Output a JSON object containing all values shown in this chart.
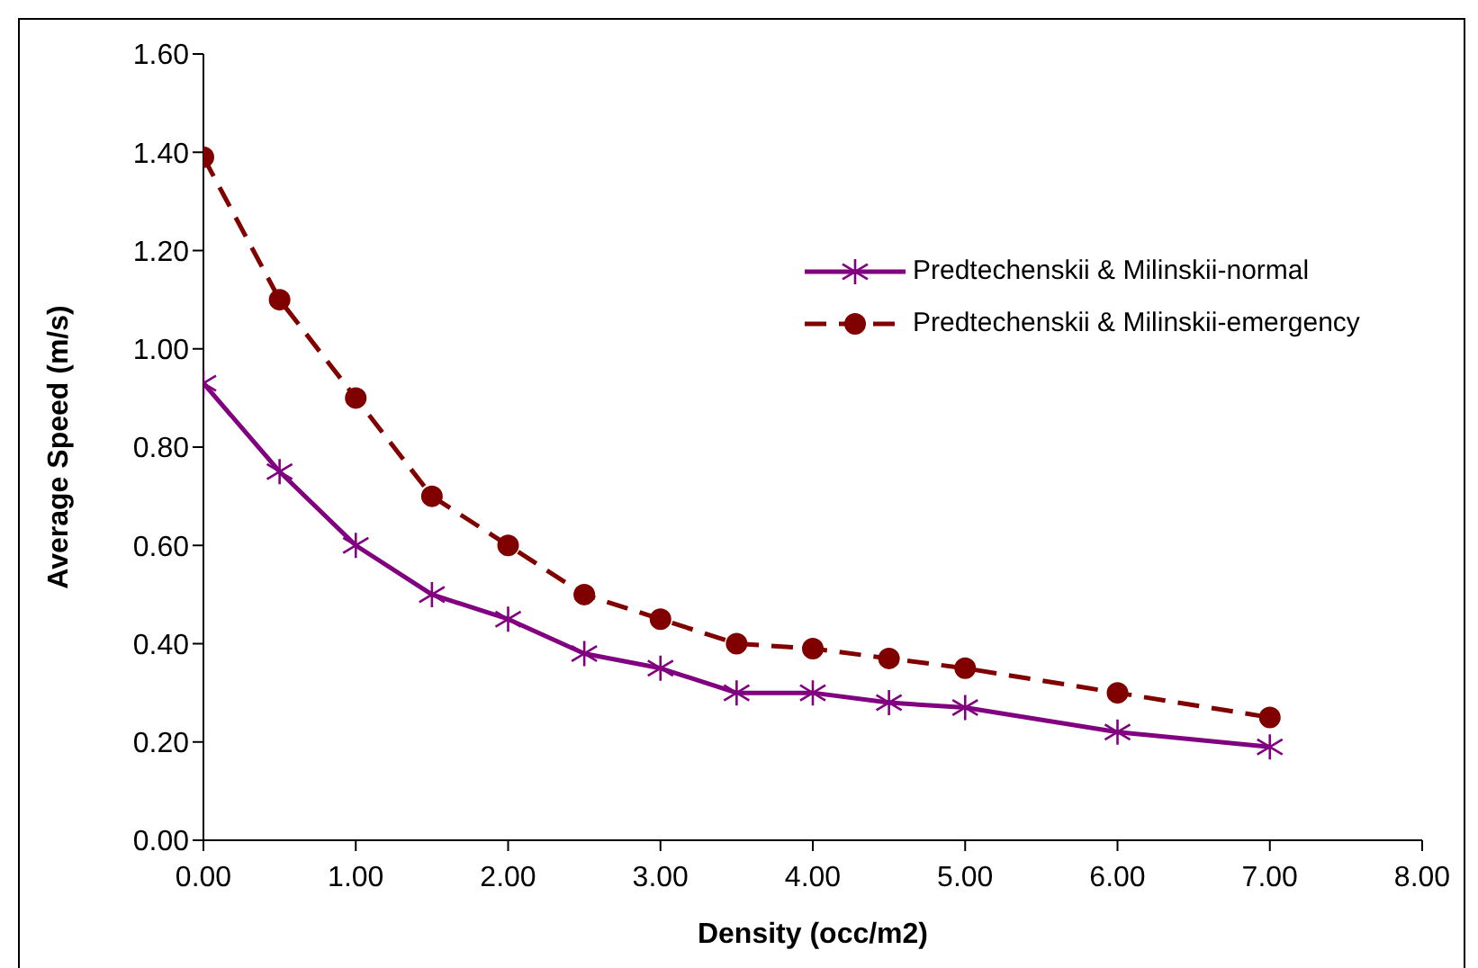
{
  "chart_data": {
    "type": "line",
    "xlabel": "Density (occ/m2)",
    "ylabel": "Average Speed (m/s)",
    "x": [
      0,
      0.5,
      1,
      1.5,
      2,
      2.5,
      3,
      3.5,
      4,
      4.5,
      5,
      6,
      7
    ],
    "series": [
      {
        "name": "Predtechenskii & Milinskii-normal",
        "color": "#800080",
        "marker": "cross",
        "line_style": "solid",
        "values": [
          0.93,
          0.75,
          0.6,
          0.5,
          0.45,
          0.38,
          0.35,
          0.3,
          0.3,
          0.28,
          0.27,
          0.22,
          0.19
        ]
      },
      {
        "name": "Predtechenskii & Milinskii-emergency",
        "color": "#800000",
        "marker": "circle",
        "line_style": "dashed",
        "values": [
          1.39,
          1.1,
          0.9,
          0.7,
          0.6,
          0.5,
          0.45,
          0.4,
          0.39,
          0.37,
          0.35,
          0.3,
          0.25
        ]
      }
    ],
    "xlim": [
      0,
      8
    ],
    "xticks": [
      {
        "value": 0,
        "label": "0.00"
      },
      {
        "value": 1,
        "label": "1.00"
      },
      {
        "value": 2,
        "label": "2.00"
      },
      {
        "value": 3,
        "label": "3.00"
      },
      {
        "value": 4,
        "label": "4.00"
      },
      {
        "value": 5,
        "label": "5.00"
      },
      {
        "value": 6,
        "label": "6.00"
      },
      {
        "value": 7,
        "label": "7.00"
      },
      {
        "value": 8,
        "label": "8.00"
      }
    ],
    "ylim": [
      0,
      1.6
    ],
    "yticks": [
      {
        "value": 0,
        "label": "0.00"
      },
      {
        "value": 0.2,
        "label": "0.20"
      },
      {
        "value": 0.4,
        "label": "0.40"
      },
      {
        "value": 0.6,
        "label": "0.60"
      },
      {
        "value": 0.8,
        "label": "0.80"
      },
      {
        "value": 1,
        "label": "1.00"
      },
      {
        "value": 1.2,
        "label": "1.20"
      },
      {
        "value": 1.4,
        "label": "1.40"
      },
      {
        "value": 1.6,
        "label": "1.60"
      }
    ],
    "grid": false,
    "legend": "right"
  }
}
